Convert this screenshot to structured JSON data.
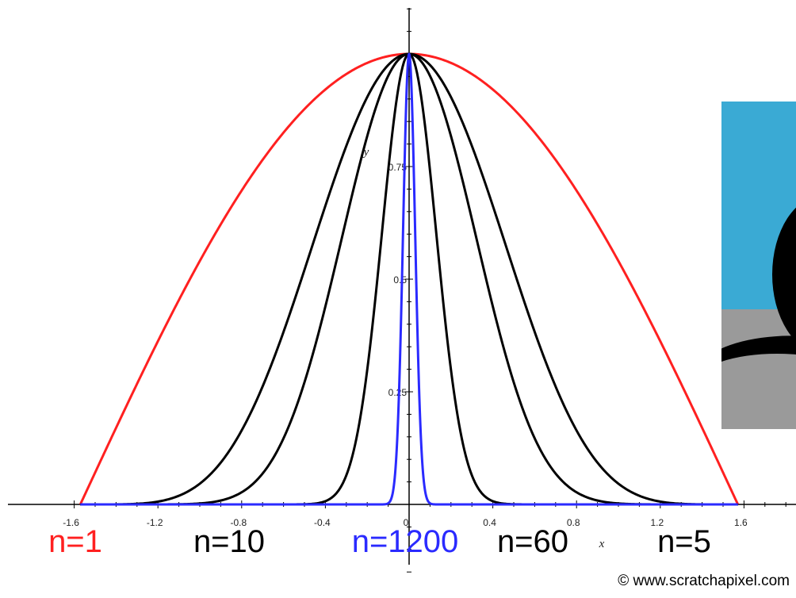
{
  "chart_data": {
    "type": "line",
    "function": "cos(x)^n",
    "xlabel": "x",
    "ylabel": "y",
    "xlim": [
      -1.6,
      1.6
    ],
    "ylim": [
      0,
      1
    ],
    "x_ticks": [
      "-1.6",
      "-1.2",
      "-0.8",
      "-0.4",
      "0",
      "0.4",
      "0.8",
      "1.2",
      "1.6"
    ],
    "y_ticks": [
      "0.25",
      "0.5",
      "0.75"
    ],
    "series": [
      {
        "name": "n=1",
        "n": 1,
        "color": "#ff2020"
      },
      {
        "name": "n=5",
        "n": 5,
        "color": "#000000"
      },
      {
        "name": "n=10",
        "n": 10,
        "color": "#000000"
      },
      {
        "name": "n=60",
        "n": 60,
        "color": "#000000"
      },
      {
        "name": "n=1200",
        "n": 1200,
        "color": "#2a2aff"
      }
    ],
    "legend": [
      {
        "text": "n=1",
        "color": "#ff2020"
      },
      {
        "text": "n=10",
        "color": "#000000"
      },
      {
        "text": "n=1200",
        "color": "#2a2aff"
      },
      {
        "text": "n=60",
        "color": "#000000"
      },
      {
        "text": "n=5",
        "color": "#000000"
      }
    ]
  },
  "credit": "© www.scratchapixel.com",
  "inset": {
    "sky_color": "#3aaad4",
    "ground_color": "#9a9a9a",
    "object_color": "#000000"
  }
}
